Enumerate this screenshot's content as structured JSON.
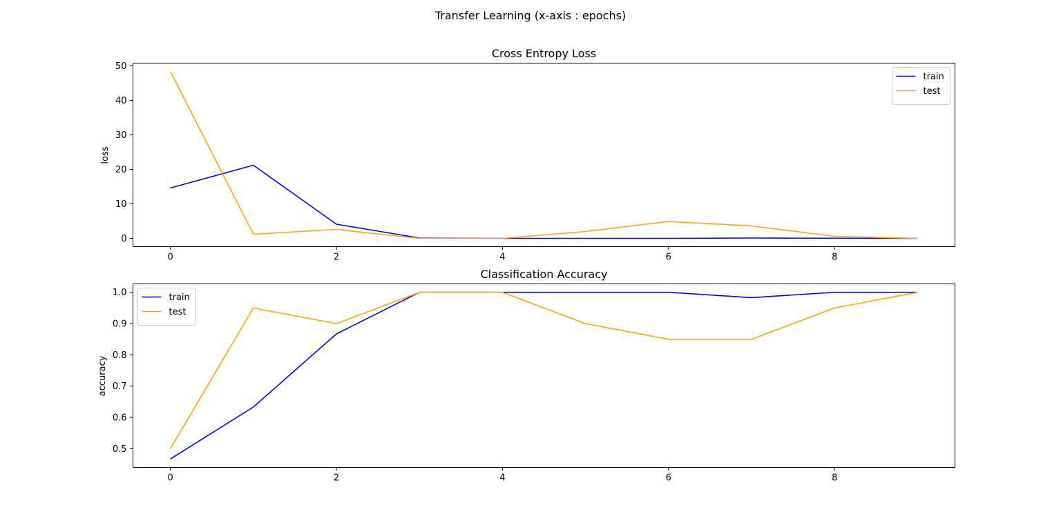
{
  "figure": {
    "suptitle": "Transfer Learning (x-axis : epochs)"
  },
  "chart_data": [
    {
      "type": "line",
      "title": "Cross Entropy Loss",
      "xlabel": "",
      "ylabel": "loss",
      "x": [
        0,
        1,
        2,
        3,
        4,
        5,
        6,
        7,
        8,
        9
      ],
      "xlim": [
        -0.45,
        9.45
      ],
      "ylim": [
        -2.4,
        50.8
      ],
      "xticks": [
        0,
        2,
        4,
        6,
        8
      ],
      "yticks": [
        0,
        10,
        20,
        30,
        40,
        50
      ],
      "ytick_labels": [
        "0",
        "10",
        "20",
        "30",
        "40",
        "50"
      ],
      "grid": false,
      "legend": "top-right",
      "series": [
        {
          "name": "train",
          "color": "#0000ff",
          "values": [
            14.6,
            21.2,
            4.1,
            0.1,
            0.0,
            0.0,
            0.0,
            0.1,
            0.05,
            0.0
          ]
        },
        {
          "name": "test",
          "color": "#ffa500",
          "values": [
            48.4,
            1.2,
            2.6,
            0.0,
            0.0,
            2.0,
            4.9,
            3.6,
            0.6,
            0.0
          ]
        }
      ]
    },
    {
      "type": "line",
      "title": "Classification Accuracy",
      "xlabel": "",
      "ylabel": "accuracy",
      "x": [
        0,
        1,
        2,
        3,
        4,
        5,
        6,
        7,
        8,
        9
      ],
      "xlim": [
        -0.45,
        9.45
      ],
      "ylim": [
        0.44,
        1.027
      ],
      "xticks": [
        0,
        2,
        4,
        6,
        8
      ],
      "yticks": [
        0.5,
        0.6,
        0.7,
        0.8,
        0.9,
        1.0
      ],
      "ytick_labels": [
        "0.5",
        "0.6",
        "0.7",
        "0.8",
        "0.9",
        "1.0"
      ],
      "grid": false,
      "legend": "top-left",
      "series": [
        {
          "name": "train",
          "color": "#0000ff",
          "values": [
            0.467,
            0.633,
            0.867,
            1.0,
            1.0,
            1.0,
            1.0,
            0.983,
            1.0,
            1.0
          ]
        },
        {
          "name": "test",
          "color": "#ffa500",
          "values": [
            0.5,
            0.95,
            0.9,
            1.0,
            1.0,
            0.9,
            0.85,
            0.85,
            0.95,
            1.0
          ]
        }
      ]
    }
  ]
}
